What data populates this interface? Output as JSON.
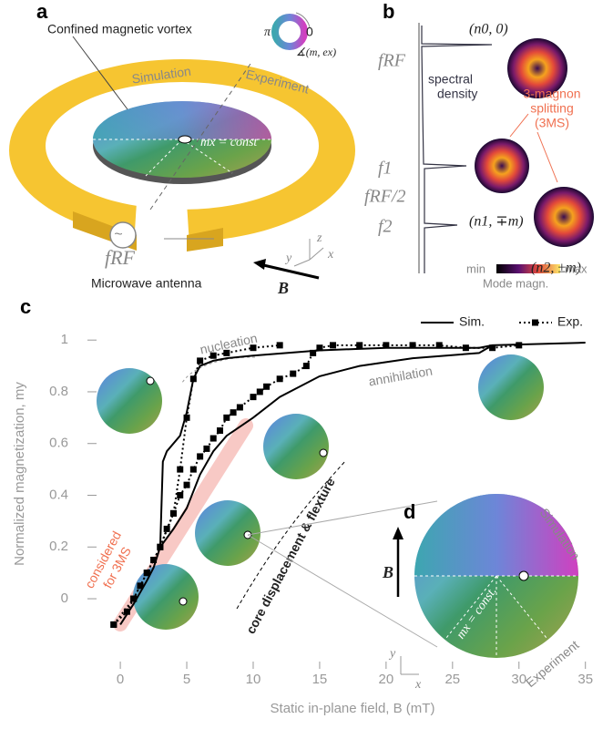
{
  "panel_a": {
    "label": "a",
    "vortex": "Confined magnetic vortex",
    "simulation": "Simulation",
    "experiment": "Experiment",
    "mx": "mx = const",
    "pi": "π",
    "zero": "0",
    "angle": "∡(m, ex)",
    "frf": "fRF",
    "tilde": "~",
    "antenna": "Microwave antenna",
    "B": "B",
    "x": "x",
    "y": "y",
    "z": "z"
  },
  "panel_b": {
    "label": "b",
    "frf": "fRF",
    "f1": "f1",
    "frf2": "fRF/2",
    "f2": "f2",
    "spectral": "spectral",
    "density": "density",
    "n0": "(n0, 0)",
    "n1": "(n1, ∓m)",
    "n2": "(n2, ±m)",
    "split1": "3-magnon",
    "split2": "splitting",
    "split3": "(3MS)",
    "min": "min",
    "max": "max",
    "mode": "Mode magn."
  },
  "panel_d": {
    "label": "d",
    "B": "B",
    "simulation": "Simulation",
    "experiment": "Experiment",
    "mx": "mx = const.",
    "x": "x",
    "y": "y"
  },
  "chart_data": {
    "type": "line",
    "panel_label": "c",
    "xlabel": "Static in-plane field, B (mT)",
    "ylabel": "Normalized magnetization, my",
    "xlim": [
      -2.2,
      35.5
    ],
    "ylim": [
      -0.25,
      1.05
    ],
    "xticks": [
      0,
      5,
      10,
      15,
      20,
      25,
      30,
      35
    ],
    "yticks": [
      0,
      0.2,
      0.4,
      0.6,
      0.8,
      1
    ],
    "legend": "top-right",
    "annotations": [
      "nucleation",
      "annihilation",
      "considered",
      "for 3MS",
      "core displacement & flexture"
    ],
    "series": [
      {
        "name": "Sim.",
        "color": "#000000",
        "style": "solid",
        "x": [
          0,
          1,
          2,
          2.5,
          3,
          3.2,
          3.5,
          4.5,
          5,
          5.5,
          6,
          7,
          8,
          10,
          15,
          20,
          27,
          28,
          35,
          null,
          3,
          4,
          5,
          6,
          7,
          8,
          10,
          12,
          15,
          18,
          22,
          27,
          28
        ],
        "values": [
          -0.1,
          -0.02,
          0.07,
          0.12,
          0.2,
          0.53,
          0.57,
          0.63,
          0.72,
          0.85,
          0.9,
          0.92,
          0.93,
          0.94,
          0.96,
          0.97,
          0.97,
          0.98,
          0.99,
          null,
          0.2,
          0.27,
          0.35,
          0.48,
          0.57,
          0.63,
          0.7,
          0.78,
          0.86,
          0.9,
          0.93,
          0.95,
          0.98
        ]
      },
      {
        "name": "Exp.",
        "color": "#000000",
        "style": "dotted",
        "marker": "square",
        "x": [
          -0.5,
          0.5,
          1,
          1.5,
          2,
          2.5,
          3,
          3.5,
          4,
          4.5,
          5,
          5.5,
          6,
          6.5,
          7,
          7.5,
          8,
          8.5,
          9,
          10,
          10.5,
          11,
          12,
          13,
          14,
          14.5,
          15,
          16,
          18,
          20,
          22,
          24,
          26,
          28,
          30,
          null,
          -0.5,
          1,
          2,
          3,
          4,
          4.5,
          5,
          5.5,
          6,
          7,
          8,
          10,
          12
        ],
        "values": [
          -0.1,
          -0.05,
          0,
          0.05,
          0.1,
          0.15,
          0.2,
          0.27,
          0.33,
          0.4,
          0.44,
          0.5,
          0.55,
          0.58,
          0.62,
          0.65,
          0.7,
          0.72,
          0.74,
          0.78,
          0.8,
          0.82,
          0.85,
          0.87,
          0.9,
          0.95,
          0.97,
          0.98,
          0.98,
          0.98,
          0.98,
          0.98,
          0.97,
          0.97,
          0.98,
          null,
          -0.1,
          0,
          0.1,
          0.2,
          0.33,
          0.5,
          0.7,
          0.85,
          0.92,
          0.94,
          0.95,
          0.97,
          0.98
        ]
      }
    ]
  }
}
